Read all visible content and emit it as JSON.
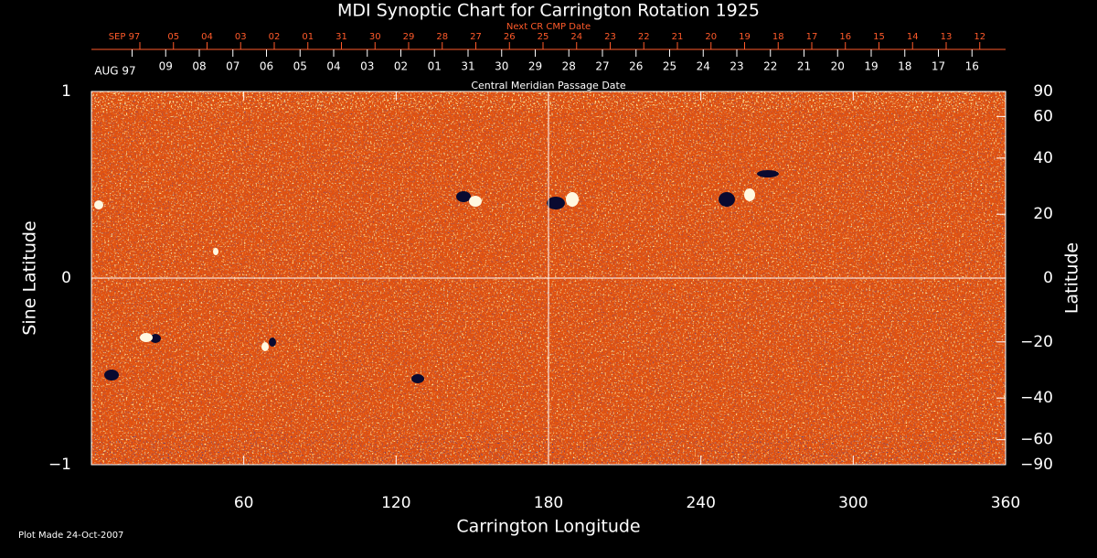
{
  "chart_data": {
    "type": "heatmap-map",
    "title": "MDI Synoptic Chart for Carrington Rotation 1925",
    "top_axis_label": "Next CR CMP Date",
    "top_dates": [
      "SEP 97",
      "05",
      "04",
      "03",
      "02",
      "01",
      "31",
      "30",
      "29",
      "28",
      "27",
      "26",
      "25",
      "24",
      "23",
      "22",
      "21",
      "20",
      "19",
      "18",
      "17",
      "16",
      "15",
      "14",
      "13",
      "12"
    ],
    "cmp_dates": [
      "AUG 97",
      "09",
      "08",
      "07",
      "06",
      "05",
      "04",
      "03",
      "02",
      "01",
      "31",
      "30",
      "29",
      "28",
      "27",
      "26",
      "25",
      "24",
      "23",
      "22",
      "21",
      "20",
      "19",
      "18",
      "17",
      "16"
    ],
    "cmp_axis_label": "Central Meridian Passage Date",
    "x_label": "Carrington Longitude",
    "y_label": "Sine Latitude",
    "y2_label": "Latitude",
    "xlim": [
      0,
      360
    ],
    "xticks": [
      60,
      120,
      180,
      240,
      300,
      360
    ],
    "ylim": [
      -1,
      1
    ],
    "yticks": [
      {
        "value": -1,
        "label": "−1"
      },
      0,
      1
    ],
    "y2lim": [
      -90,
      90
    ],
    "y2scale": "sine",
    "y2ticks": [
      90,
      60,
      40,
      20,
      0,
      {
        "value": -20,
        "label": "−20"
      },
      {
        "value": -40,
        "label": "−40"
      },
      {
        "value": -60,
        "label": "−60"
      },
      {
        "value": -90,
        "label": "−90"
      }
    ],
    "footer": "Plot Made 24-Oct-2007"
  }
}
